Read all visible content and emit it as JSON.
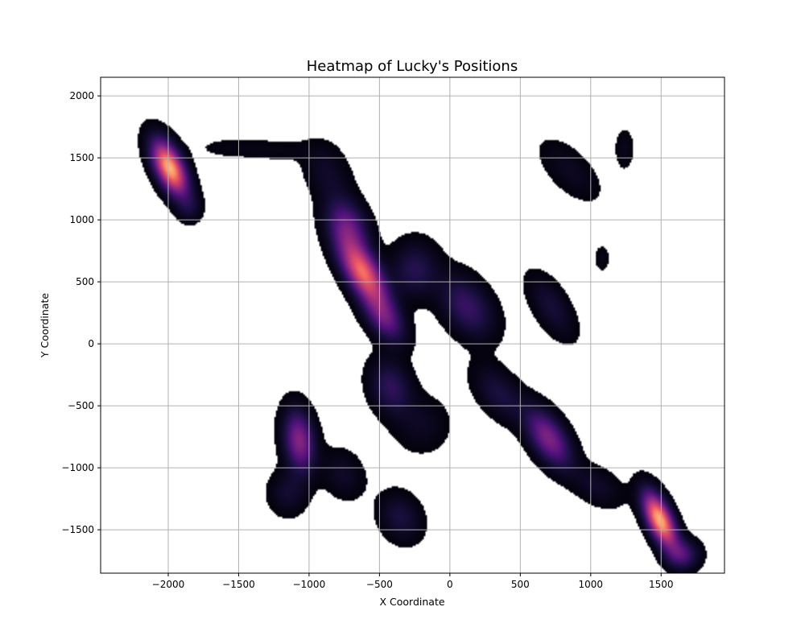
{
  "chart_data": {
    "type": "heatmap",
    "title": "Heatmap of Lucky's Positions",
    "xlabel": "X Coordinate",
    "ylabel": "Y Coordinate",
    "xlim": [
      -2480,
      1950
    ],
    "ylim": [
      -1850,
      2150
    ],
    "x_ticks": [
      -2000,
      -1500,
      -1000,
      -500,
      0,
      500,
      1000,
      1500
    ],
    "y_ticks": [
      -1500,
      -1000,
      -500,
      0,
      500,
      1000,
      1500,
      2000
    ],
    "x_tick_labels": [
      "−2000",
      "−1500",
      "−1000",
      "−500",
      "0",
      "500",
      "1000",
      "1500"
    ],
    "y_tick_labels": [
      "−1500",
      "−1000",
      "−500",
      "0",
      "500",
      "1000",
      "1500",
      "2000"
    ],
    "grid": true,
    "colormap": "magma",
    "density_peaks": [
      {
        "x": -1990,
        "y": 1420,
        "sx": 85,
        "sy": 150,
        "rho": -0.55,
        "weight": 1.0
      },
      {
        "x": -1850,
        "y": 1100,
        "sx": 60,
        "sy": 80,
        "rho": 0.0,
        "weight": 0.12
      },
      {
        "x": -1550,
        "y": 1580,
        "sx": 180,
        "sy": 60,
        "rho": 0.0,
        "weight": 0.05
      },
      {
        "x": -1200,
        "y": 1560,
        "sx": 160,
        "sy": 60,
        "rho": 0.0,
        "weight": 0.05
      },
      {
        "x": -870,
        "y": 1380,
        "sx": 110,
        "sy": 160,
        "rho": -0.3,
        "weight": 0.12
      },
      {
        "x": -730,
        "y": 950,
        "sx": 100,
        "sy": 150,
        "rho": -0.3,
        "weight": 0.4
      },
      {
        "x": -620,
        "y": 580,
        "sx": 110,
        "sy": 170,
        "rho": -0.6,
        "weight": 0.82
      },
      {
        "x": -470,
        "y": 220,
        "sx": 100,
        "sy": 140,
        "rho": -0.5,
        "weight": 0.4
      },
      {
        "x": -250,
        "y": 600,
        "sx": 110,
        "sy": 150,
        "rho": 0.0,
        "weight": 0.22
      },
      {
        "x": 120,
        "y": 300,
        "sx": 130,
        "sy": 170,
        "rho": -0.4,
        "weight": 0.28
      },
      {
        "x": -420,
        "y": -350,
        "sx": 100,
        "sy": 150,
        "rho": -0.2,
        "weight": 0.25
      },
      {
        "x": -200,
        "y": -650,
        "sx": 130,
        "sy": 150,
        "rho": 0.0,
        "weight": 0.1
      },
      {
        "x": -1070,
        "y": -780,
        "sx": 75,
        "sy": 170,
        "rho": -0.2,
        "weight": 0.5
      },
      {
        "x": -1150,
        "y": -1200,
        "sx": 90,
        "sy": 120,
        "rho": 0.0,
        "weight": 0.14
      },
      {
        "x": -760,
        "y": -1050,
        "sx": 100,
        "sy": 130,
        "rho": -0.2,
        "weight": 0.12
      },
      {
        "x": -350,
        "y": -1400,
        "sx": 100,
        "sy": 130,
        "rho": -0.2,
        "weight": 0.18
      },
      {
        "x": 700,
        "y": -760,
        "sx": 110,
        "sy": 160,
        "rho": -0.55,
        "weight": 0.48
      },
      {
        "x": 350,
        "y": -400,
        "sx": 120,
        "sy": 150,
        "rho": -0.5,
        "weight": 0.18
      },
      {
        "x": 1050,
        "y": -1150,
        "sx": 120,
        "sy": 110,
        "rho": -0.4,
        "weight": 0.12
      },
      {
        "x": 1490,
        "y": -1420,
        "sx": 80,
        "sy": 150,
        "rho": -0.6,
        "weight": 1.0
      },
      {
        "x": 1650,
        "y": -1700,
        "sx": 80,
        "sy": 80,
        "rho": 0.0,
        "weight": 0.3
      },
      {
        "x": 720,
        "y": 300,
        "sx": 110,
        "sy": 170,
        "rho": -0.6,
        "weight": 0.16
      },
      {
        "x": 850,
        "y": 1400,
        "sx": 140,
        "sy": 160,
        "rho": -0.6,
        "weight": 0.1
      },
      {
        "x": 1240,
        "y": 1570,
        "sx": 45,
        "sy": 110,
        "rho": 0.0,
        "weight": 0.08
      },
      {
        "x": 1080,
        "y": 690,
        "sx": 40,
        "sy": 80,
        "rho": 0.0,
        "weight": 0.06
      }
    ],
    "density_cutoff": 0.03
  }
}
